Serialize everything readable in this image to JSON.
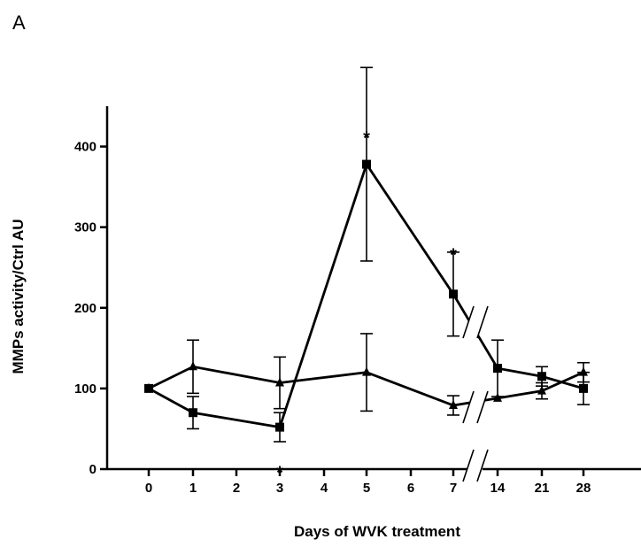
{
  "panel_label": "A",
  "chart_data": {
    "type": "line",
    "xlabel": "Days of WVK treatment",
    "ylabel": "MMPs activity/Ctrl AU",
    "categories": [
      "0",
      "1",
      "2",
      "3",
      "4",
      "5",
      "6",
      "7",
      "14",
      "21",
      "28"
    ],
    "ylim": [
      0,
      450
    ],
    "yticks": [
      "0",
      "100",
      "200",
      "300",
      "400"
    ],
    "axis_break": "between 7 and 14",
    "grid": false,
    "legend": "none",
    "series": [
      {
        "marker": "square",
        "color": "#000000",
        "x": [
          "0",
          "1",
          "3",
          "5",
          "7",
          "14",
          "21",
          "28"
        ],
        "values": [
          100,
          70,
          52,
          378,
          217,
          125,
          115,
          100
        ],
        "errors": [
          0,
          20,
          18,
          120,
          52,
          35,
          12,
          20
        ]
      },
      {
        "marker": "triangle",
        "color": "#000000",
        "x": [
          "0",
          "1",
          "3",
          "5",
          "7",
          "14",
          "21",
          "28"
        ],
        "values": [
          100,
          127,
          107,
          120,
          79,
          88,
          97,
          120
        ],
        "errors": [
          0,
          33,
          32,
          48,
          12,
          0,
          10,
          12
        ]
      }
    ],
    "annotations": [
      {
        "text": "*",
        "x": "5",
        "y": 412
      },
      {
        "text": "*",
        "x": "7",
        "y": 267
      },
      {
        "text": "*",
        "x": "3",
        "y": -3
      }
    ]
  }
}
